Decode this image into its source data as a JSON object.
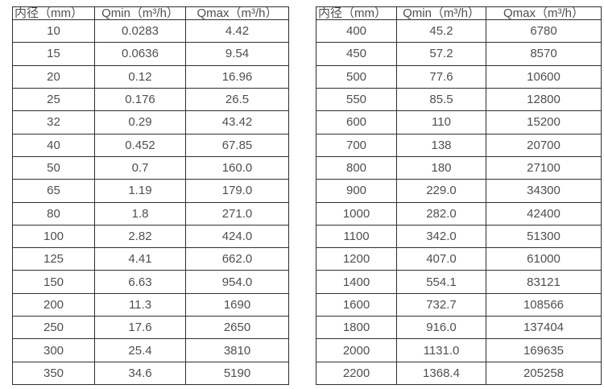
{
  "colors": {
    "background": "#ffffff",
    "border": "#2f2f2f",
    "text": "#4f4f4f"
  },
  "chart_data": [
    {
      "type": "table",
      "name": "flow-range-table-small-diameters",
      "columns": [
        "内径（mm）",
        "Qmin（m³/h）",
        "Qmax（m³/h）"
      ],
      "rows": [
        [
          "10",
          "0.0283",
          "4.42"
        ],
        [
          "15",
          "0.0636",
          "9.54"
        ],
        [
          "20",
          "0.12",
          "16.96"
        ],
        [
          "25",
          "0.176",
          "26.5"
        ],
        [
          "32",
          "0.29",
          "43.42"
        ],
        [
          "40",
          "0.452",
          "67.85"
        ],
        [
          "50",
          "0.7",
          "160.0"
        ],
        [
          "65",
          "1.19",
          "179.0"
        ],
        [
          "80",
          "1.8",
          "271.0"
        ],
        [
          "100",
          "2.82",
          "424.0"
        ],
        [
          "125",
          "4.41",
          "662.0"
        ],
        [
          "150",
          "6.63",
          "954.0"
        ],
        [
          "200",
          "11.3",
          "1690"
        ],
        [
          "250",
          "17.6",
          "2650"
        ],
        [
          "300",
          "25.4",
          "3810"
        ],
        [
          "350",
          "34.6",
          "5190"
        ]
      ]
    },
    {
      "type": "table",
      "name": "flow-range-table-large-diameters",
      "columns": [
        "内径（mm）",
        "Qmin（m³/h）",
        "Qmax（m³/h）"
      ],
      "rows": [
        [
          "400",
          "45.2",
          "6780"
        ],
        [
          "450",
          "57.2",
          "8570"
        ],
        [
          "500",
          "77.6",
          "10600"
        ],
        [
          "550",
          "85.5",
          "12800"
        ],
        [
          "600",
          "110",
          "15200"
        ],
        [
          "700",
          "138",
          "20700"
        ],
        [
          "800",
          "180",
          "27100"
        ],
        [
          "900",
          "229.0",
          "34300"
        ],
        [
          "1000",
          "282.0",
          "42400"
        ],
        [
          "1100",
          "342.0",
          "51300"
        ],
        [
          "1200",
          "407.0",
          "61000"
        ],
        [
          "1400",
          "554.1",
          "83121"
        ],
        [
          "1600",
          "732.7",
          "108566"
        ],
        [
          "1800",
          "916.0",
          "137404"
        ],
        [
          "2000",
          "1131.0",
          "169635"
        ],
        [
          "2200",
          "1368.4",
          "205258"
        ]
      ]
    }
  ]
}
